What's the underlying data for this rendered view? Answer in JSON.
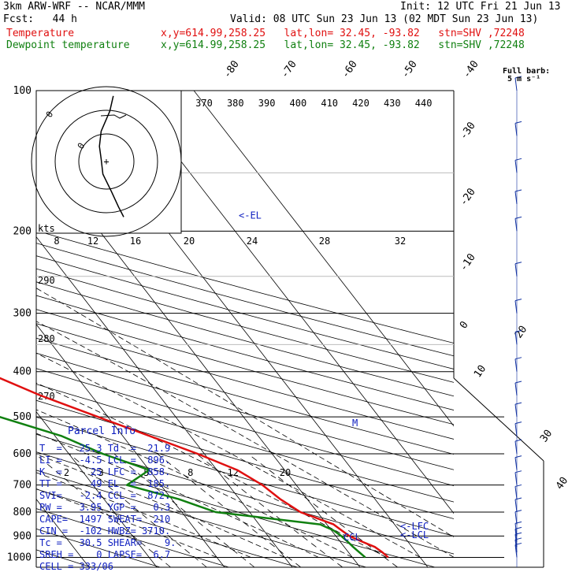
{
  "header": {
    "model": "3km ARW-WRF -- NCAR/MMM",
    "init": "Init: 12 UTC Fri 21 Jun 13",
    "fcst": "Fcst:   44 h",
    "valid": "Valid: 08 UTC Sun 23 Jun 13 (02 MDT Sun 23 Jun 13)",
    "temperature_label": "Temperature",
    "dewpoint_label": "Dewpoint temperature",
    "temperature_loc": "x,y=614.99,258.25   lat,lon= 32.45, -93.82   stn=SHV ,72248",
    "dewpoint_loc": "x,y=614.99,258.25   lat,lon= 32.45, -93.82   stn=SHV ,72248"
  },
  "colors": {
    "temperature": "#e01010",
    "dewpoint": "#108010",
    "parcel_info": "#1020c0",
    "barbs": "#1030a0"
  },
  "barb_legend": {
    "line1": "Full barb:",
    "line2": "5 m s⁻¹"
  },
  "parcel_info": {
    "title": "Parcel Info",
    "rows": [
      "T  =   25.3 Td  =  21.9",
      "LI =   -4.5 LCL =  896.",
      "K  =     25 LFC =  858.",
      "TT =     49 EL  =  185.",
      "SVI=   -2.4 CCL =  872.",
      "PW =   3.95 YGP =   0.3",
      "CAPE=  1497 SWEAT=  210",
      "CIN =  -102 HWBZ= 3710.",
      "Tc =   30.5 SHEAR=    9.",
      "SREH =    0 LAPSE=  6.7",
      "CELL = 333/06"
    ]
  },
  "annotations": {
    "el": "<-EL",
    "lfc": "<-LFC",
    "lcl": "<-LCL",
    "ccl": "CCL",
    "kts": "kts",
    "m_marker": "M"
  },
  "chart_data": {
    "type": "line",
    "chart_kind": "skew-T log-p sounding",
    "pressure_ticks": [
      "100",
      "200",
      "300",
      "400",
      "500",
      "600",
      "700",
      "800",
      "900",
      "1000"
    ],
    "pressure_levels": [
      100,
      200,
      300,
      400,
      500,
      600,
      700,
      800,
      900,
      1000
    ],
    "isotherm_labels_top": [
      "-80",
      "-70",
      "-60",
      "-50",
      "-40"
    ],
    "isotherm_labels_right": [
      "-30",
      "-20",
      "-10",
      "0",
      "10",
      "20",
      "30",
      "40"
    ],
    "theta_labels": [
      "370",
      "380",
      "390",
      "400",
      "410",
      "420",
      "430",
      "440"
    ],
    "theta_labels_left": [
      "290",
      "280",
      "270"
    ],
    "mixing_ratio_labels": [
      "2",
      "3",
      "5",
      "8",
      "12",
      "20"
    ],
    "hodograph_ring_labels": [
      "8",
      "12",
      "16",
      "20",
      "24",
      "28",
      "32"
    ],
    "series": [
      {
        "name": "Temperature",
        "pressure": [
          100,
          130,
          160,
          200,
          250,
          300,
          350,
          400,
          450,
          500,
          550,
          600,
          650,
          700,
          750,
          800,
          850,
          875,
          900,
          925,
          950,
          975,
          1000
        ],
        "temp_c": [
          -74,
          -67,
          -64,
          -60,
          -48,
          -35,
          -23,
          -13,
          -7.5,
          -1.5,
          4,
          9,
          13,
          15,
          16,
          17.5,
          21,
          21.5,
          22,
          23.2,
          24.5,
          25,
          25.3
        ]
      },
      {
        "name": "Dewpoint temperature",
        "pressure": [
          100,
          130,
          160,
          200,
          240,
          250,
          300,
          350,
          385,
          400,
          450,
          500,
          550,
          600,
          650,
          700,
          750,
          800,
          850,
          875,
          900,
          925,
          950,
          975,
          1000
        ],
        "temp_c": [
          -95,
          -93,
          -92,
          -90,
          -87,
          -88,
          -74,
          -68,
          -67,
          -58,
          -28,
          -16,
          -9,
          -5,
          0,
          -5,
          1,
          5,
          19,
          20.3,
          20.8,
          21.1,
          21.3,
          21.6,
          21.9
        ]
      }
    ],
    "hodograph_trace": [
      [
        4,
        -26
      ],
      [
        2,
        -20
      ],
      [
        -3,
        -12
      ],
      [
        -4,
        -6
      ],
      [
        -3,
        -1
      ],
      [
        -2,
        5
      ],
      [
        3,
        12
      ],
      [
        7,
        18
      ],
      [
        10,
        22
      ]
    ],
    "wind_barbs": {
      "levels_hpa": [
        100,
        125,
        150,
        175,
        200,
        250,
        300,
        350,
        400,
        450,
        500,
        550,
        600,
        650,
        700,
        750,
        800,
        850,
        900,
        925,
        950,
        975,
        1000
      ]
    }
  }
}
